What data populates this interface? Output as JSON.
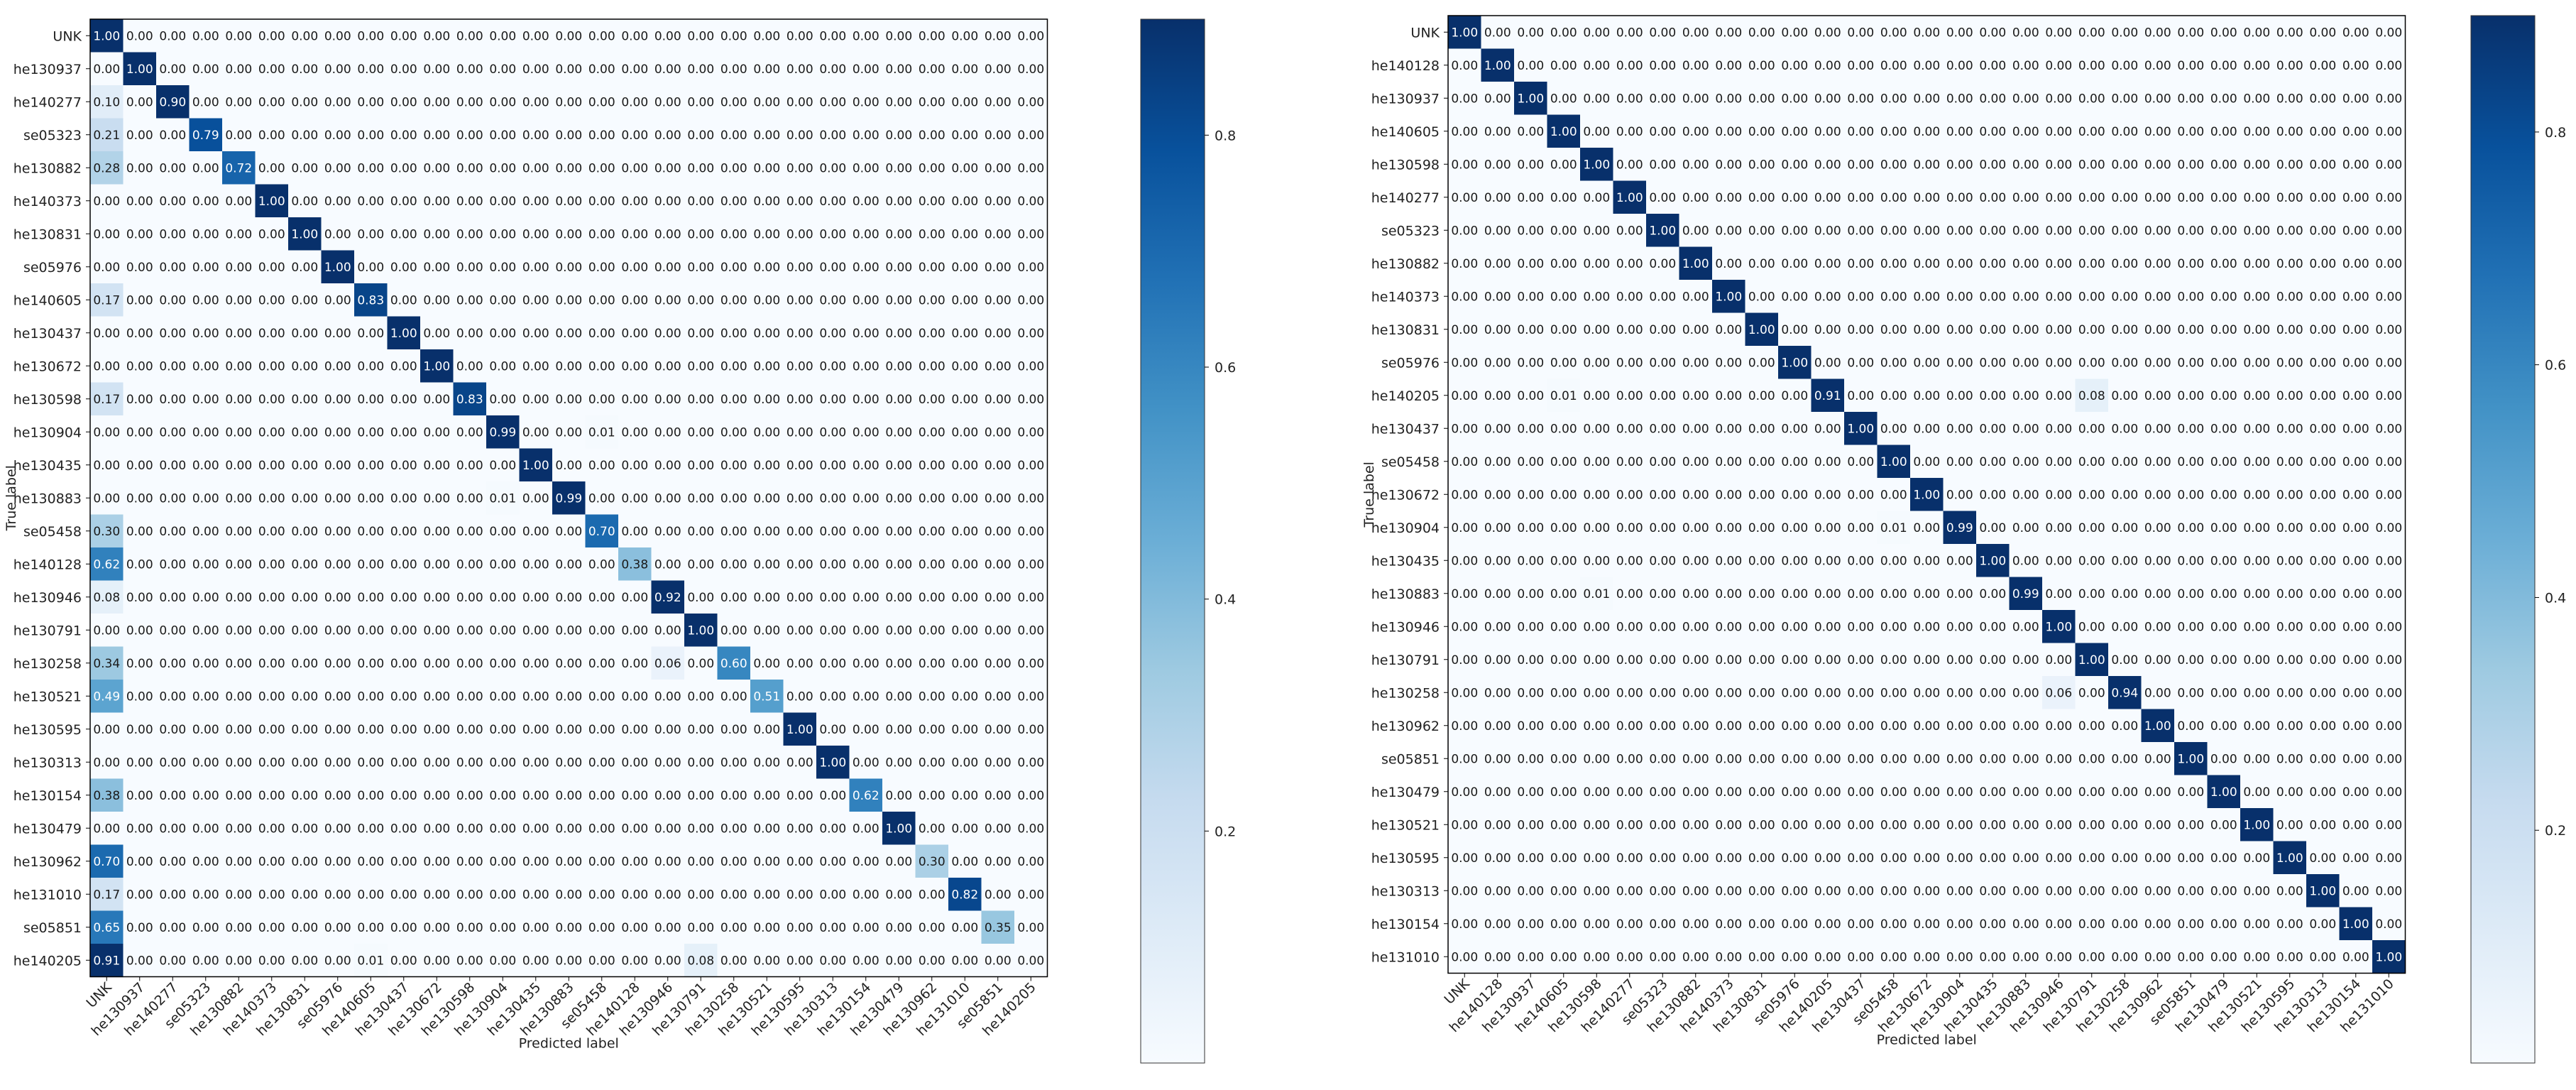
{
  "chart_data": [
    {
      "type": "heatmap",
      "title": "",
      "xlabel": "Predicted label",
      "ylabel": "True label",
      "colormap": "Blues",
      "labels": [
        "UNK",
        "he130937",
        "he140277",
        "se05323",
        "he130882",
        "he140373",
        "he130831",
        "se05976",
        "he140605",
        "he130437",
        "he130672",
        "he130598",
        "he130904",
        "he130435",
        "he130883",
        "se05458",
        "he140128",
        "he130946",
        "he130791",
        "he130258",
        "he130521",
        "he130595",
        "he130313",
        "he130154",
        "he130479",
        "he130962",
        "he131010",
        "se05851",
        "he140205"
      ],
      "diagonal": [
        1.0,
        1.0,
        0.9,
        0.79,
        0.72,
        1.0,
        1.0,
        1.0,
        0.83,
        1.0,
        1.0,
        0.83,
        0.99,
        1.0,
        0.99,
        0.7,
        0.38,
        0.92,
        1.0,
        0.6,
        0.51,
        1.0,
        1.0,
        0.62,
        1.0,
        0.3,
        0.82,
        0.35,
        0.0
      ],
      "off_diagonal": [
        {
          "row": 1,
          "col": 0,
          "value": 0.0
        },
        {
          "row": 2,
          "col": 0,
          "value": 0.1
        },
        {
          "row": 3,
          "col": 0,
          "value": 0.21
        },
        {
          "row": 4,
          "col": 0,
          "value": 0.28
        },
        {
          "row": 8,
          "col": 0,
          "value": 0.17
        },
        {
          "row": 11,
          "col": 0,
          "value": 0.17
        },
        {
          "row": 12,
          "col": 15,
          "value": 0.01
        },
        {
          "row": 14,
          "col": 12,
          "value": 0.01
        },
        {
          "row": 15,
          "col": 0,
          "value": 0.3
        },
        {
          "row": 16,
          "col": 0,
          "value": 0.62
        },
        {
          "row": 17,
          "col": 0,
          "value": 0.08
        },
        {
          "row": 19,
          "col": 0,
          "value": 0.34
        },
        {
          "row": 19,
          "col": 17,
          "value": 0.06
        },
        {
          "row": 20,
          "col": 0,
          "value": 0.49
        },
        {
          "row": 23,
          "col": 0,
          "value": 0.38
        },
        {
          "row": 25,
          "col": 0,
          "value": 0.7
        },
        {
          "row": 26,
          "col": 0,
          "value": 0.17
        },
        {
          "row": 27,
          "col": 0,
          "value": 0.65
        },
        {
          "row": 28,
          "col": 0,
          "value": 0.91
        },
        {
          "row": 28,
          "col": 8,
          "value": 0.01
        },
        {
          "row": 28,
          "col": 18,
          "value": 0.08
        }
      ],
      "colorbar_ticks": [
        0.2,
        0.4,
        0.6,
        0.8
      ],
      "colorbar_range": [
        0,
        0.9
      ]
    },
    {
      "type": "heatmap",
      "title": "",
      "xlabel": "Predicted label",
      "ylabel": "True label",
      "colormap": "Blues",
      "labels": [
        "UNK",
        "he140128",
        "he130937",
        "he140605",
        "he130598",
        "he140277",
        "se05323",
        "he130882",
        "he140373",
        "he130831",
        "se05976",
        "he140205",
        "he130437",
        "se05458",
        "he130672",
        "he130904",
        "he130435",
        "he130883",
        "he130946",
        "he130791",
        "he130258",
        "he130962",
        "se05851",
        "he130479",
        "he130521",
        "he130595",
        "he130313",
        "he130154",
        "he131010"
      ],
      "diagonal": [
        1.0,
        1.0,
        1.0,
        1.0,
        1.0,
        1.0,
        1.0,
        1.0,
        1.0,
        1.0,
        1.0,
        0.91,
        1.0,
        1.0,
        1.0,
        0.99,
        1.0,
        0.99,
        1.0,
        1.0,
        0.94,
        1.0,
        1.0,
        1.0,
        1.0,
        1.0,
        1.0,
        1.0,
        1.0
      ],
      "off_diagonal": [
        {
          "row": 11,
          "col": 3,
          "value": 0.01
        },
        {
          "row": 11,
          "col": 19,
          "value": 0.08
        },
        {
          "row": 15,
          "col": 13,
          "value": 0.01
        },
        {
          "row": 17,
          "col": 4,
          "value": 0.01
        },
        {
          "row": 20,
          "col": 18,
          "value": 0.06
        }
      ],
      "colorbar_ticks": [
        0.2,
        0.4,
        0.6,
        0.8
      ],
      "colorbar_range": [
        0,
        0.9
      ]
    }
  ]
}
